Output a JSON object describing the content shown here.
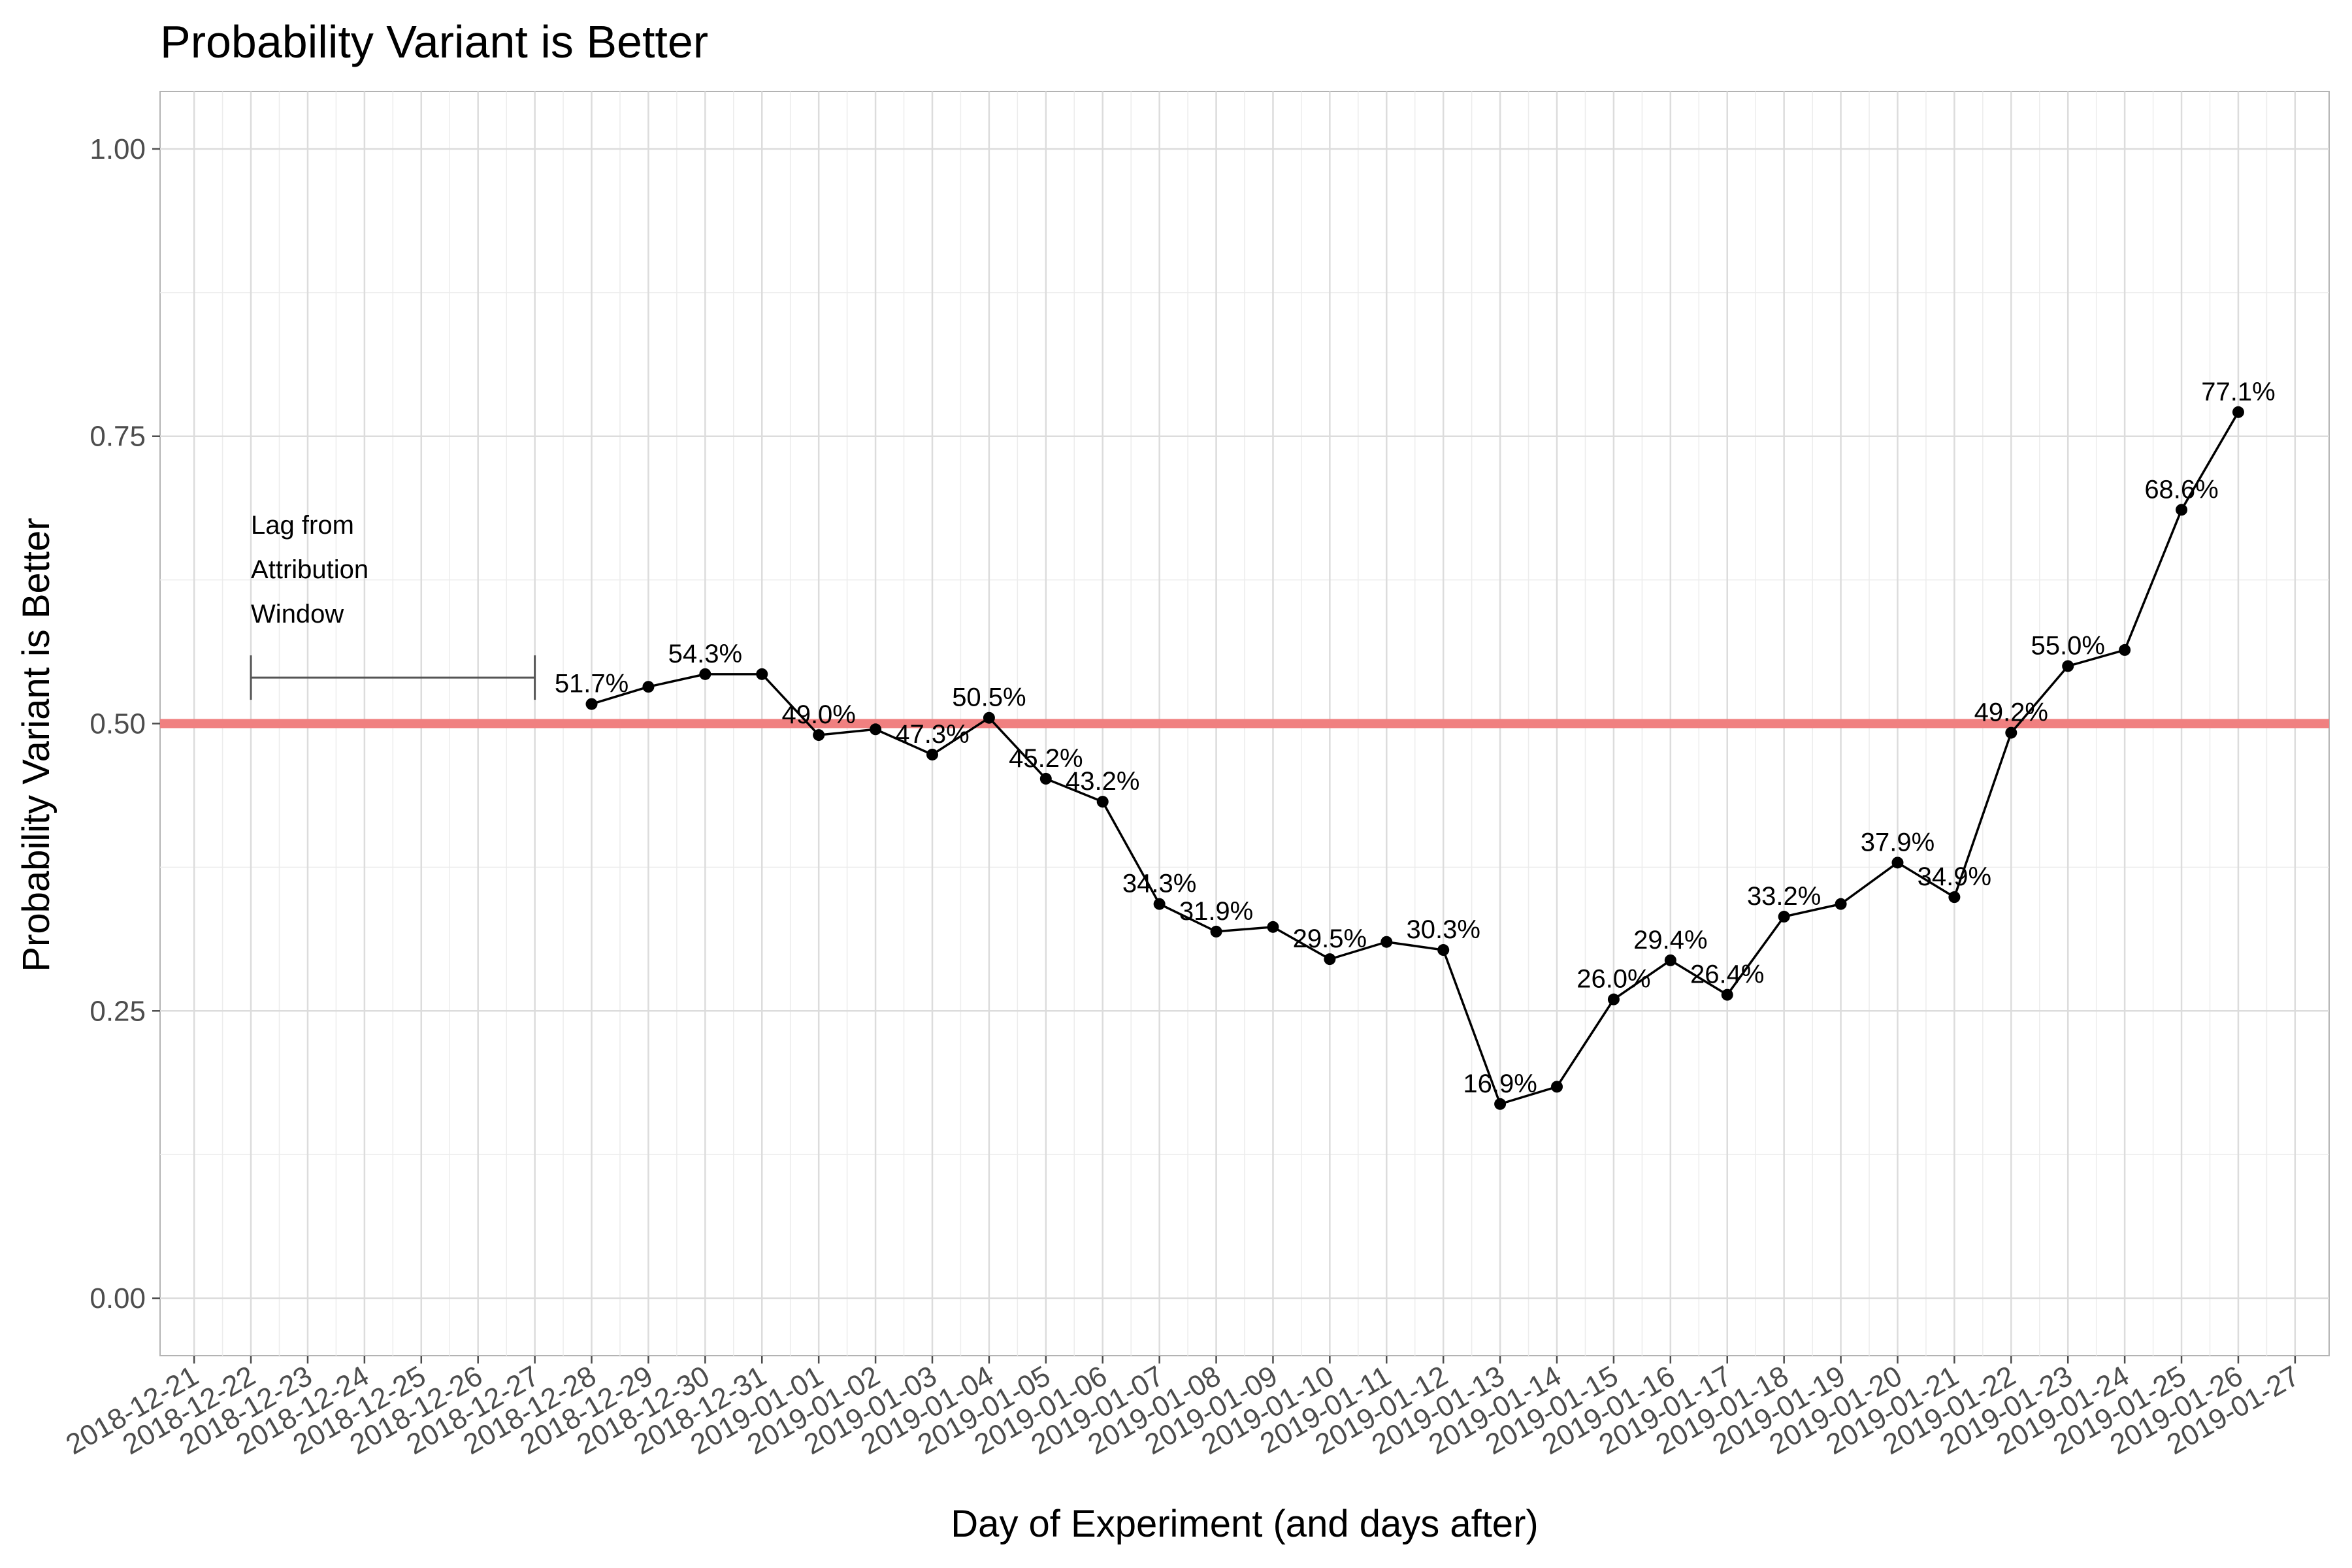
{
  "chart_data": {
    "type": "line",
    "title": "Probability Variant is Better",
    "xlabel": "Day of Experiment (and days after)",
    "ylabel": "Probability Variant is Better",
    "ylim": [
      -0.05,
      1.05
    ],
    "yticks": [
      "0.00",
      "0.25",
      "0.50",
      "0.75",
      "1.00"
    ],
    "x_tick_labels": [
      "2018-12-21",
      "2018-12-22",
      "2018-12-23",
      "2018-12-24",
      "2018-12-25",
      "2018-12-26",
      "2018-12-27",
      "2018-12-28",
      "2018-12-29",
      "2018-12-30",
      "2018-12-31",
      "2019-01-01",
      "2019-01-02",
      "2019-01-03",
      "2019-01-04",
      "2019-01-05",
      "2019-01-06",
      "2019-01-07",
      "2019-01-08",
      "2019-01-09",
      "2019-01-10",
      "2019-01-11",
      "2019-01-12",
      "2019-01-13",
      "2019-01-14",
      "2019-01-15",
      "2019-01-16",
      "2019-01-17",
      "2019-01-18",
      "2019-01-19",
      "2019-01-20",
      "2019-01-21",
      "2019-01-22",
      "2019-01-23",
      "2019-01-24",
      "2019-01-25",
      "2019-01-26",
      "2019-01-27"
    ],
    "grid": true,
    "reference_line": {
      "y": 0.5,
      "color": "#f08080"
    },
    "line_color": "#000000",
    "series": [
      {
        "x": [
          "2018-12-28",
          "2018-12-29",
          "2018-12-30",
          "2018-12-31",
          "2019-01-01",
          "2019-01-02",
          "2019-01-03",
          "2019-01-04",
          "2019-01-05",
          "2019-01-06",
          "2019-01-07",
          "2019-01-08",
          "2019-01-09",
          "2019-01-10",
          "2019-01-11",
          "2019-01-12",
          "2019-01-13",
          "2019-01-14",
          "2019-01-15",
          "2019-01-16",
          "2019-01-17",
          "2019-01-18",
          "2019-01-19",
          "2019-01-20",
          "2019-01-21",
          "2019-01-22",
          "2019-01-23",
          "2019-01-24",
          "2019-01-25",
          "2019-01-26"
        ],
        "values": [
          0.517,
          0.532,
          0.543,
          0.543,
          0.49,
          0.495,
          0.473,
          0.505,
          0.452,
          0.432,
          0.343,
          0.319,
          0.323,
          0.295,
          0.31,
          0.303,
          0.169,
          0.184,
          0.26,
          0.294,
          0.264,
          0.332,
          0.343,
          0.379,
          0.349,
          0.492,
          0.55,
          0.564,
          0.686,
          0.771
        ],
        "labels": [
          "51.7%",
          "",
          "54.3%",
          "",
          "49.0%",
          "",
          "47.3%",
          "50.5%",
          "45.2%",
          "43.2%",
          "34.3%",
          "31.9%",
          "",
          "29.5%",
          "",
          "30.3%",
          "16.9%",
          "",
          "26.0%",
          "29.4%",
          "26.4%",
          "33.2%",
          "",
          "37.9%",
          "34.9%",
          "49.2%",
          "55.0%",
          "",
          "68.6%",
          "77.1%"
        ]
      }
    ],
    "annotation": {
      "text_lines": [
        "Lag from",
        "Attribution",
        "Window"
      ],
      "bracket_from": "2018-12-22",
      "bracket_to": "2018-12-27",
      "y": 0.54,
      "color": "#555555"
    }
  }
}
